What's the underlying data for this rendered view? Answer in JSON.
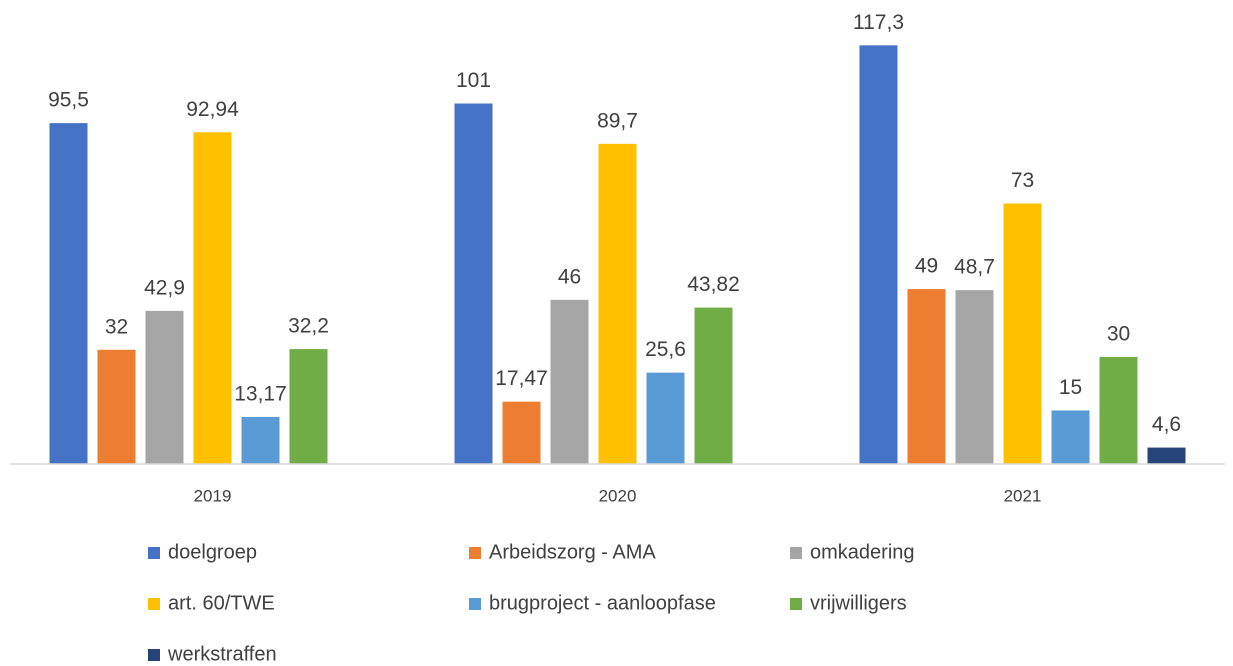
{
  "chart_data": {
    "type": "bar",
    "categories": [
      "2019",
      "2020",
      "2021"
    ],
    "ylim": [
      0,
      130
    ],
    "series": [
      {
        "name": "doelgroep",
        "color": "#4472c4",
        "values": [
          95.5,
          101,
          117.3
        ],
        "value_labels": [
          "95,5",
          "101",
          "117,3"
        ]
      },
      {
        "name": "Arbeidszorg - AMA",
        "color": "#ed7d31",
        "values": [
          32,
          17.47,
          49
        ],
        "value_labels": [
          "32",
          "17,47",
          "49"
        ]
      },
      {
        "name": "omkadering",
        "color": "#a5a5a5",
        "values": [
          42.9,
          46,
          48.7
        ],
        "value_labels": [
          "42,9",
          "46",
          "48,7"
        ]
      },
      {
        "name": "art. 60/TWE",
        "color": "#ffc000",
        "values": [
          92.94,
          89.7,
          73
        ],
        "value_labels": [
          "92,94",
          "89,7",
          "73"
        ]
      },
      {
        "name": "brugproject - aanloopfase",
        "color": "#5b9bd5",
        "values": [
          13.17,
          25.6,
          15
        ],
        "value_labels": [
          "13,17",
          "25,6",
          "15"
        ]
      },
      {
        "name": "vrijwilligers",
        "color": "#70ad47",
        "values": [
          32.2,
          43.82,
          30
        ],
        "value_labels": [
          "32,2",
          "43,82",
          "30"
        ]
      },
      {
        "name": "werkstraffen",
        "color": "#264478",
        "values": [
          null,
          null,
          4.6
        ],
        "value_labels": [
          null,
          null,
          "4,6"
        ]
      }
    ]
  }
}
